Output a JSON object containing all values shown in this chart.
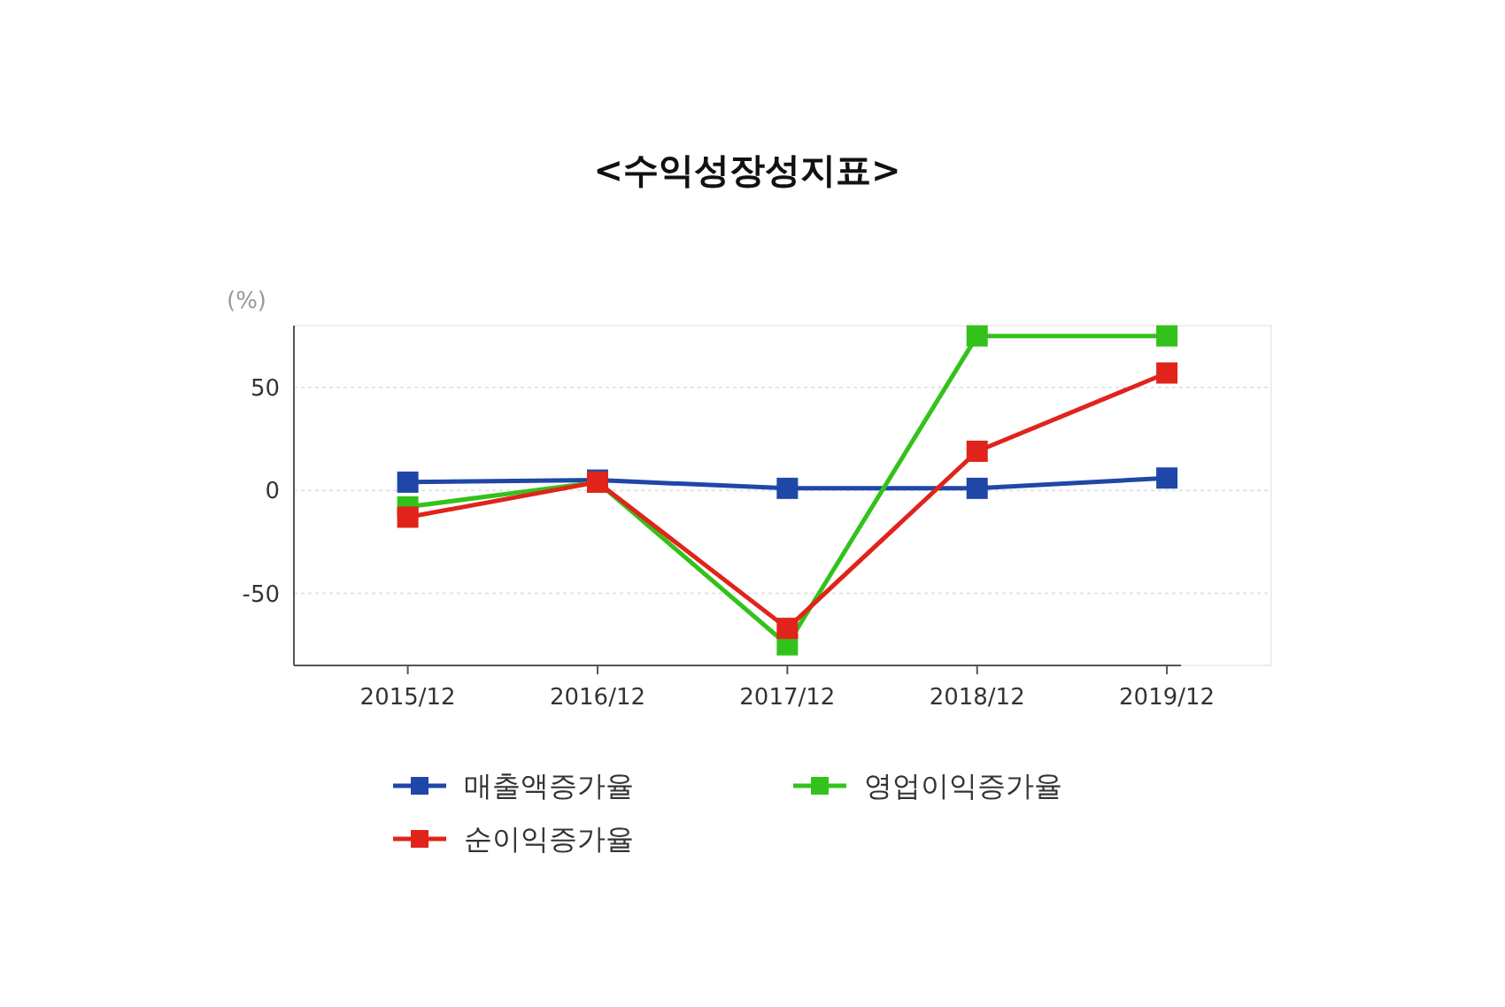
{
  "chart_data": {
    "type": "line",
    "title": "<수익성장성지표>",
    "ylabel": "(%)",
    "categories": [
      "2015/12",
      "2016/12",
      "2017/12",
      "2018/12",
      "2019/12"
    ],
    "series": [
      {
        "name": "매출액증가율",
        "color": "#1f47a8",
        "values": [
          4,
          5,
          1,
          1,
          6
        ]
      },
      {
        "name": "영업이익증가율",
        "color": "#33c21b",
        "values": [
          -8,
          4,
          -75,
          75,
          75
        ]
      },
      {
        "name": "순이익증가율",
        "color": "#e0241b",
        "values": [
          -13,
          4,
          -67,
          19,
          57
        ]
      }
    ],
    "ylim": [
      -85,
      80
    ],
    "yticks": [
      -50,
      0,
      50
    ],
    "grid": "y",
    "legend": "bottom",
    "marker": "square",
    "line_style": "solid"
  }
}
